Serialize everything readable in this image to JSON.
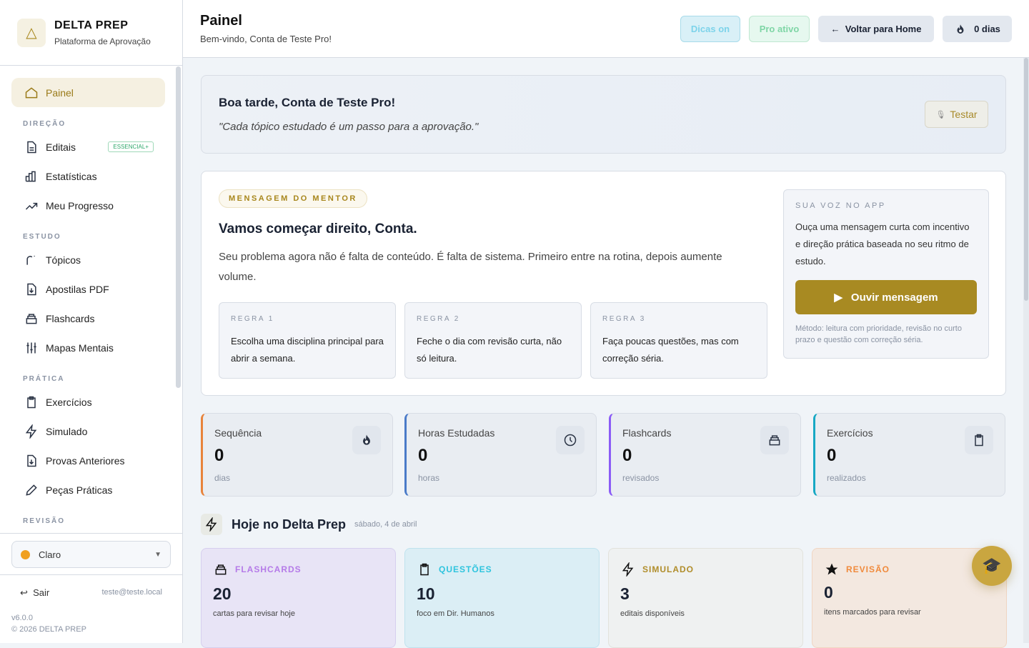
{
  "brand": {
    "name": "DELTA PREP",
    "subtitle": "Plataforma de Aprovação"
  },
  "sidebar": {
    "active": {
      "label": "Painel",
      "icon": "home-icon"
    },
    "sections": [
      {
        "title": "DIREÇÃO",
        "items": [
          {
            "label": "Editais",
            "icon": "document-icon",
            "badge": "ESSENCIAL+"
          },
          {
            "label": "Estatísticas",
            "icon": "bar-chart-icon"
          },
          {
            "label": "Meu Progresso",
            "icon": "trending-up-icon"
          }
        ]
      },
      {
        "title": "ESTUDO",
        "items": [
          {
            "label": "Tópicos",
            "icon": "topics-icon"
          },
          {
            "label": "Apostilas PDF",
            "icon": "file-download-icon"
          },
          {
            "label": "Flashcards",
            "icon": "cards-icon"
          },
          {
            "label": "Mapas Mentais",
            "icon": "sliders-icon"
          }
        ]
      },
      {
        "title": "PRÁTICA",
        "items": [
          {
            "label": "Exercícios",
            "icon": "clipboard-icon"
          },
          {
            "label": "Simulado",
            "icon": "bolt-icon"
          },
          {
            "label": "Provas Anteriores",
            "icon": "file-download-icon"
          },
          {
            "label": "Peças Práticas",
            "icon": "pencil-icon"
          }
        ]
      },
      {
        "title": "REVISÃO",
        "items": []
      }
    ],
    "theme": "Claro",
    "logout": "Sair",
    "email": "teste@teste.local",
    "version": "v6.0.0",
    "copyright": "© 2026 DELTA PREP"
  },
  "header": {
    "title": "Painel",
    "subtitle": "Bem-vindo, Conta de Teste Pro!",
    "dicas": "Dicas on",
    "pro": "Pro ativo",
    "voltar": "Voltar para Home",
    "streak": "0 dias"
  },
  "greeting": {
    "title": "Boa tarde, Conta de Teste Pro!",
    "quote": "\"Cada tópico estudado é um passo para a aprovação.\"",
    "test": "Testar"
  },
  "mentor": {
    "pill": "MENSAGEM DO MENTOR",
    "title": "Vamos começar direito, Conta.",
    "text": "Seu problema agora não é falta de conteúdo. É falta de sistema. Primeiro entre na rotina, depois aumente volume.",
    "rules": [
      {
        "label": "REGRA 1",
        "text": "Escolha uma disciplina principal para abrir a semana."
      },
      {
        "label": "REGRA 2",
        "text": "Feche o dia com revisão curta, não só leitura."
      },
      {
        "label": "REGRA 3",
        "text": "Faça poucas questões, mas com correção séria."
      }
    ],
    "voice": {
      "label": "SUA VOZ NO APP",
      "text": "Ouça uma mensagem curta com incentivo e direção prática baseada no seu ritmo de estudo.",
      "button": "Ouvir mensagem",
      "method": "Método: leitura com prioridade, revisão no curto prazo e questão com correção séria."
    }
  },
  "stats": [
    {
      "label": "Sequência",
      "value": "0",
      "unit": "dias",
      "color": "#e8833a",
      "icon": "flame-icon"
    },
    {
      "label": "Horas Estudadas",
      "value": "0",
      "unit": "horas",
      "color": "#4a7bc8",
      "icon": "clock-icon"
    },
    {
      "label": "Flashcards",
      "value": "0",
      "unit": "revisados",
      "color": "#8b5cf6",
      "icon": "cards-icon"
    },
    {
      "label": "Exercícios",
      "value": "0",
      "unit": "realizados",
      "color": "#17a8c4",
      "icon": "clipboard-icon"
    }
  ],
  "today": {
    "title": "Hoje no Delta Prep",
    "date": "sábado, 4 de abril",
    "cards": [
      {
        "label": "FLASHCARDS",
        "value": "20",
        "text": "cartas para revisar hoje",
        "color": "#b57ae8",
        "bg": "#e8e4f6",
        "icon": "cards-icon"
      },
      {
        "label": "QUESTÕES",
        "value": "10",
        "text": "foco em Dir. Humanos",
        "color": "#2ec4de",
        "bg": "#dbeef5",
        "icon": "clipboard-icon"
      },
      {
        "label": "SIMULADO",
        "value": "3",
        "text": "editais disponíveis",
        "color": "#b08d2a",
        "bg": "#eff1f1",
        "icon": "bolt-icon"
      },
      {
        "label": "REVISÃO",
        "value": "0",
        "text": "itens marcados para revisar",
        "color": "#f08a3c",
        "bg": "#f3e8e0",
        "icon": "star-icon"
      }
    ]
  }
}
